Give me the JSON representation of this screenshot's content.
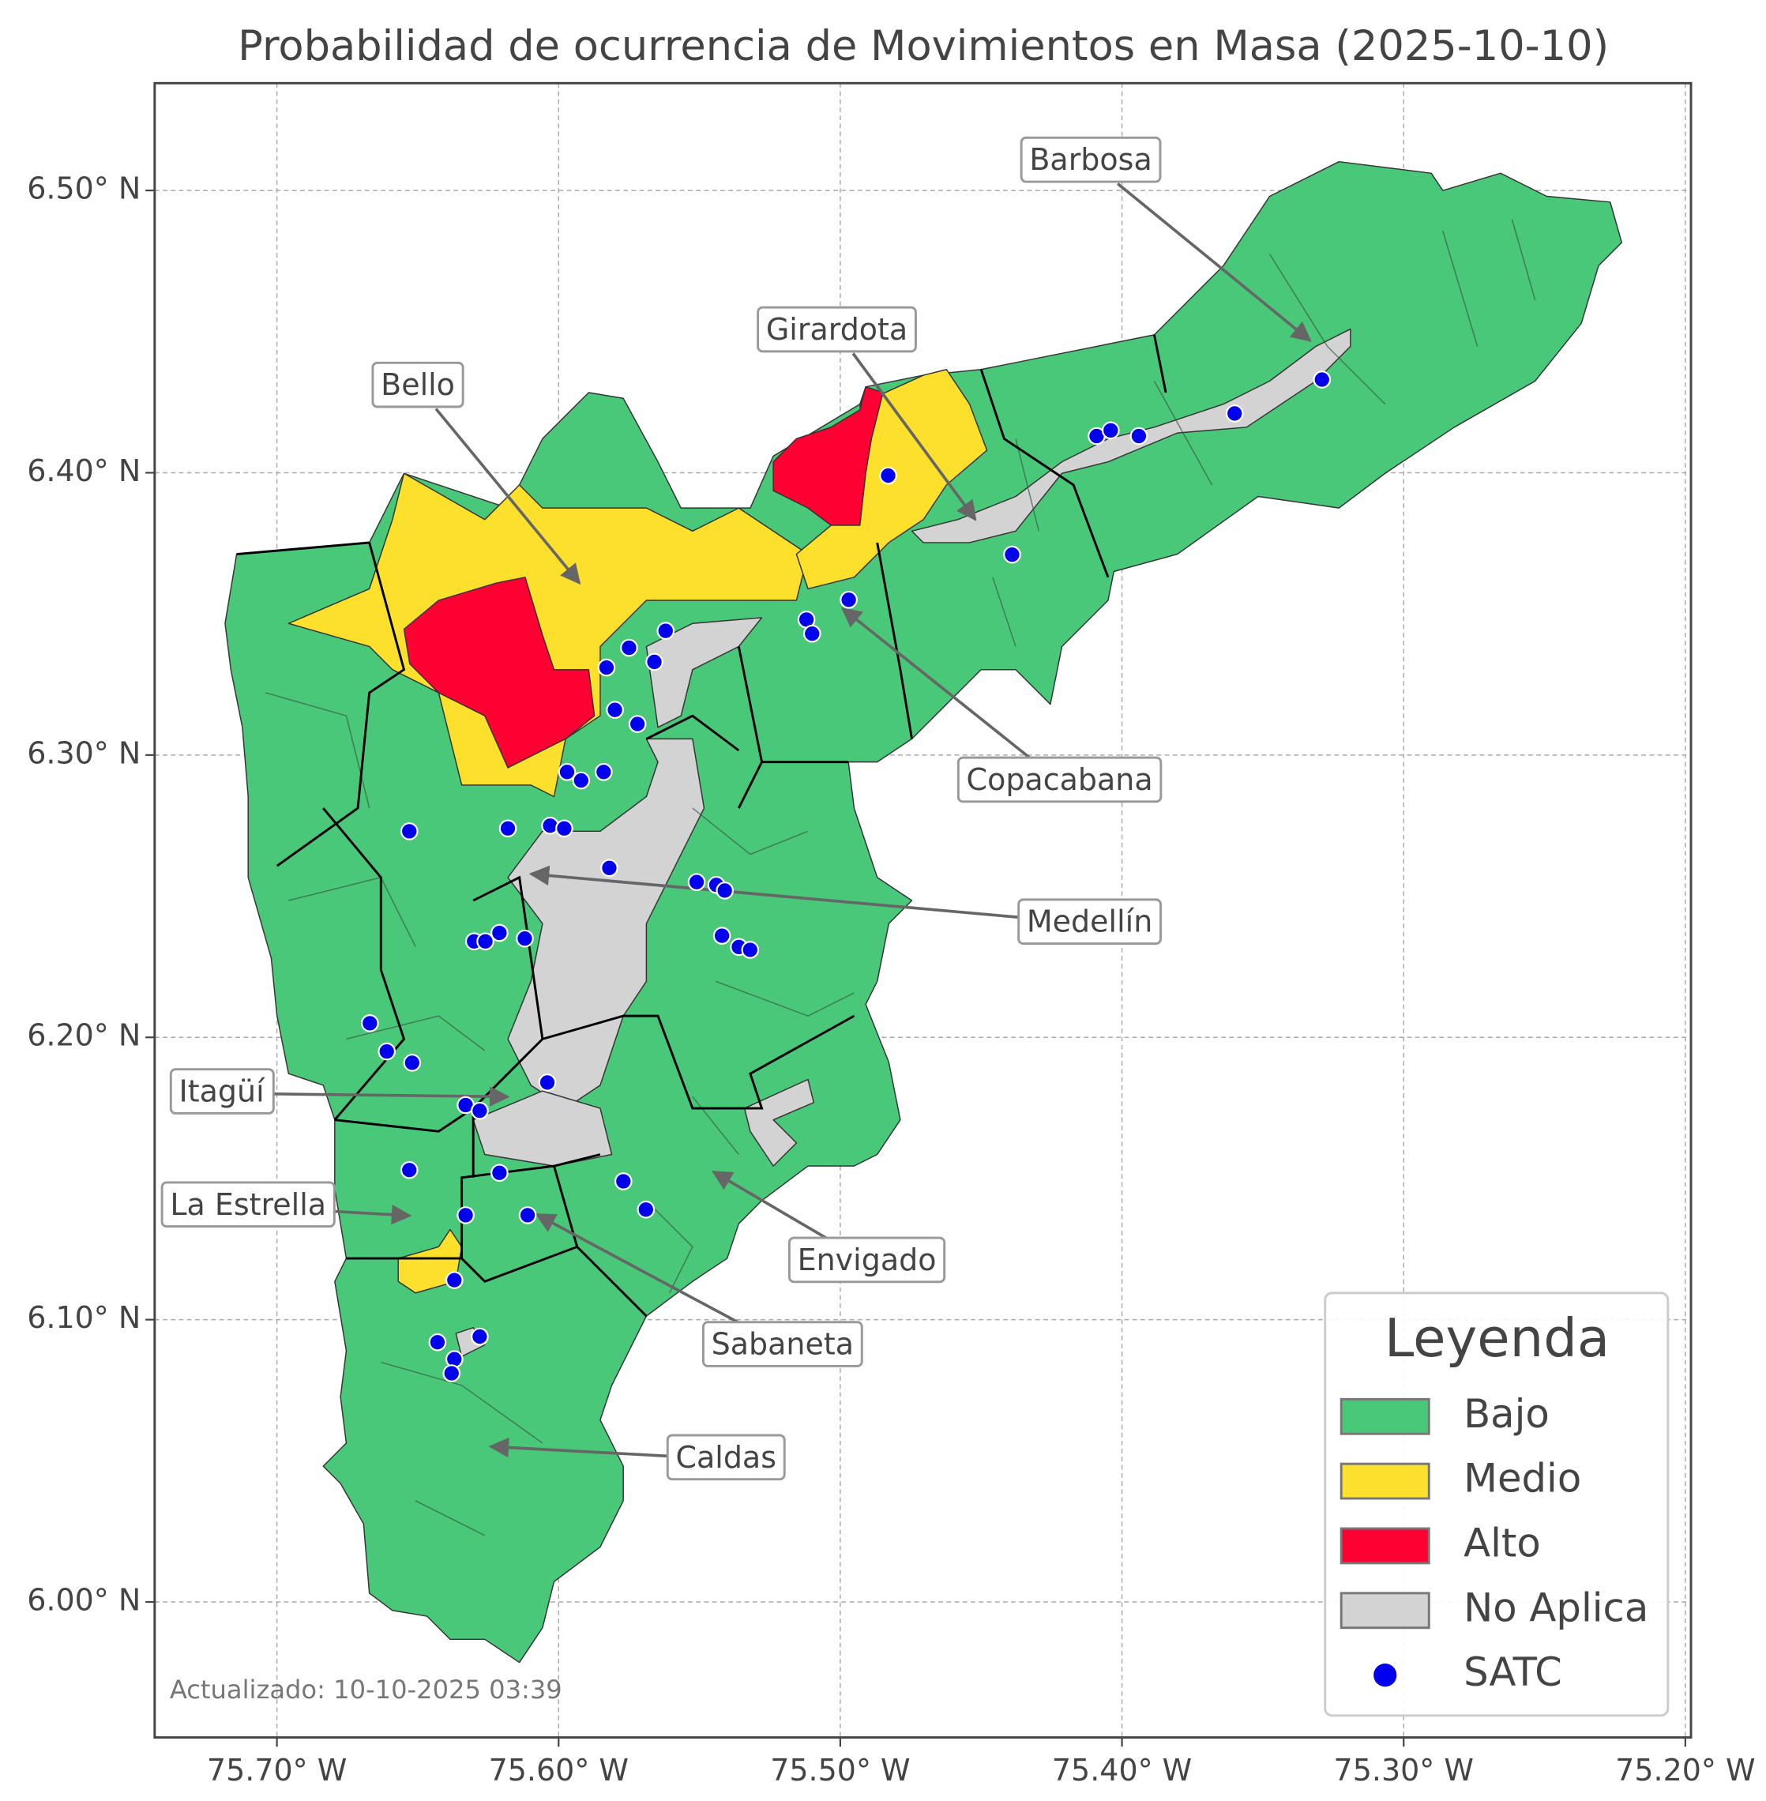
{
  "title": "Probabilidad de ocurrencia de Movimientos en Masa (2025-10-10)",
  "footnote": "Actualizado: 10-10-2025 03:39",
  "map": {
    "xlim": [
      -75.7434,
      -75.198
    ],
    "ylim": [
      5.952,
      6.538
    ],
    "grid": true,
    "xticks": [
      {
        "value": -75.7,
        "label": "75.70° W"
      },
      {
        "value": -75.6,
        "label": "75.60° W"
      },
      {
        "value": -75.5,
        "label": "75.50° W"
      },
      {
        "value": -75.4,
        "label": "75.40° W"
      },
      {
        "value": -75.3,
        "label": "75.30° W"
      },
      {
        "value": -75.2,
        "label": "75.20° W"
      }
    ],
    "yticks": [
      {
        "value": 6.0,
        "label": "6.00° N"
      },
      {
        "value": 6.1,
        "label": "6.10° N"
      },
      {
        "value": 6.2,
        "label": "6.20° N"
      },
      {
        "value": 6.3,
        "label": "6.30° N"
      },
      {
        "value": 6.4,
        "label": "6.40° N"
      },
      {
        "value": 6.5,
        "label": "6.50° N"
      }
    ]
  },
  "annotations": [
    "Barbosa",
    "Girardota",
    "Bello",
    "Copacabana",
    "Medellín",
    "Itagüí",
    "La Estrella",
    "Envigado",
    "Sabaneta",
    "Caldas"
  ],
  "legend": {
    "title": "Leyenda",
    "items": [
      {
        "name": "Bajo",
        "color": "#48c878"
      },
      {
        "name": "Medio",
        "color": "#fde02b"
      },
      {
        "name": "Alto",
        "color": "#fe0032"
      },
      {
        "name": "No Aplica",
        "color": "#d3d3d3"
      }
    ]
  },
  "satc": {
    "name": "SATC",
    "color": "#0000ee",
    "points": [
      [
        -75.329,
        6.433
      ],
      [
        -75.36,
        6.421
      ],
      [
        -75.409,
        6.413
      ],
      [
        -75.404,
        6.415
      ],
      [
        -75.394,
        6.413
      ],
      [
        -75.483,
        6.399
      ],
      [
        -75.439,
        6.371
      ],
      [
        -75.497,
        6.355
      ],
      [
        -75.512,
        6.348
      ],
      [
        -75.51,
        6.343
      ],
      [
        -75.562,
        6.344
      ],
      [
        -75.575,
        6.338
      ],
      [
        -75.566,
        6.333
      ],
      [
        -75.583,
        6.331
      ],
      [
        -75.58,
        6.316
      ],
      [
        -75.572,
        6.311
      ],
      [
        -75.597,
        6.294
      ],
      [
        -75.584,
        6.294
      ],
      [
        -75.592,
        6.291
      ],
      [
        -75.653,
        6.273
      ],
      [
        -75.618,
        6.274
      ],
      [
        -75.603,
        6.275
      ],
      [
        -75.598,
        6.274
      ],
      [
        -75.582,
        6.26
      ],
      [
        -75.551,
        6.255
      ],
      [
        -75.544,
        6.254
      ],
      [
        -75.541,
        6.252
      ],
      [
        -75.542,
        6.236
      ],
      [
        -75.536,
        6.232
      ],
      [
        -75.532,
        6.231
      ],
      [
        -75.63,
        6.234
      ],
      [
        -75.626,
        6.234
      ],
      [
        -75.621,
        6.237
      ],
      [
        -75.612,
        6.235
      ],
      [
        -75.667,
        6.205
      ],
      [
        -75.661,
        6.195
      ],
      [
        -75.652,
        6.191
      ],
      [
        -75.604,
        6.184
      ],
      [
        -75.633,
        6.176
      ],
      [
        -75.628,
        6.174
      ],
      [
        -75.653,
        6.153
      ],
      [
        -75.621,
        6.152
      ],
      [
        -75.577,
        6.149
      ],
      [
        -75.633,
        6.137
      ],
      [
        -75.611,
        6.137
      ],
      [
        -75.569,
        6.139
      ],
      [
        -75.637,
        6.114
      ],
      [
        -75.643,
        6.092
      ],
      [
        -75.628,
        6.094
      ],
      [
        -75.637,
        6.086
      ],
      [
        -75.638,
        6.081
      ]
    ]
  }
}
